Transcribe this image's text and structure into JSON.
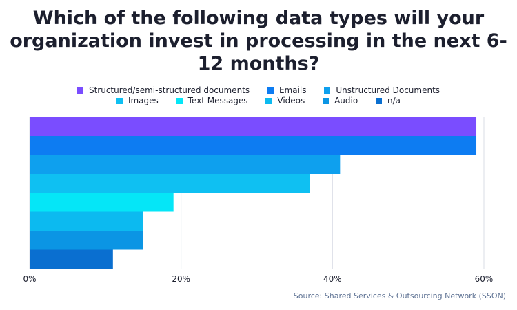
{
  "title": "Which of the following data types will your organization invest in processing in the next 6-12 months?",
  "source": "Source: Shared Services & Outsourcing Network (SSON)",
  "chart_data": {
    "type": "bar",
    "orientation": "horizontal",
    "title": "Which of the following data types will your organization invest in processing in the next 6-12 months?",
    "xlabel": "",
    "ylabel": "",
    "xlim": [
      0,
      60
    ],
    "x_ticks": [
      "0%",
      "20%",
      "40%",
      "60%"
    ],
    "x_tick_values": [
      0,
      20,
      40,
      60
    ],
    "grid": "vertical",
    "legend_position": "top",
    "series": [
      {
        "name": "Structured/semi-structured documents",
        "value": 59,
        "color": "#7a4dff"
      },
      {
        "name": "Emails",
        "value": 59,
        "color": "#0d7cf2"
      },
      {
        "name": "Unstructured Documents",
        "value": 41,
        "color": "#0ea0ee"
      },
      {
        "name": "Images",
        "value": 37,
        "color": "#0fc0f2"
      },
      {
        "name": "Text Messages",
        "value": 19,
        "color": "#05e6f7"
      },
      {
        "name": "Videos",
        "value": 15,
        "color": "#0cbaf0"
      },
      {
        "name": "Audio",
        "value": 15,
        "color": "#0b95e4"
      },
      {
        "name": "n/a",
        "value": 11,
        "color": "#0a6fd0"
      }
    ]
  }
}
